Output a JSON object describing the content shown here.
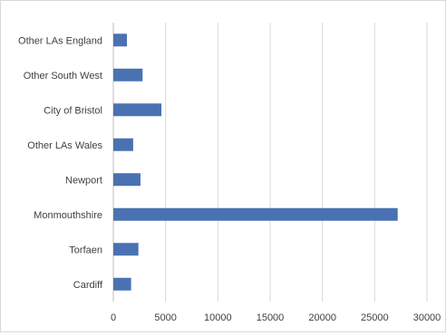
{
  "chart_data": {
    "type": "bar",
    "orientation": "horizontal",
    "categories": [
      "Other LAs England",
      "Other South West",
      "City of Bristol",
      "Other LAs Wales",
      "Newport",
      "Monmouthshire",
      "Torfaen",
      "Cardiff"
    ],
    "values": [
      1300,
      2800,
      4600,
      1900,
      2600,
      27200,
      2400,
      1700
    ],
    "xlim": [
      0,
      30000
    ],
    "xticks": [
      "0",
      "5000",
      "10000",
      "15000",
      "20000",
      "25000",
      "30000"
    ],
    "grid": "vertical",
    "legend": "none",
    "bar_color": "#4a72b2",
    "grid_color": "#d9d9d9",
    "title": "",
    "xlabel": "",
    "ylabel": ""
  }
}
